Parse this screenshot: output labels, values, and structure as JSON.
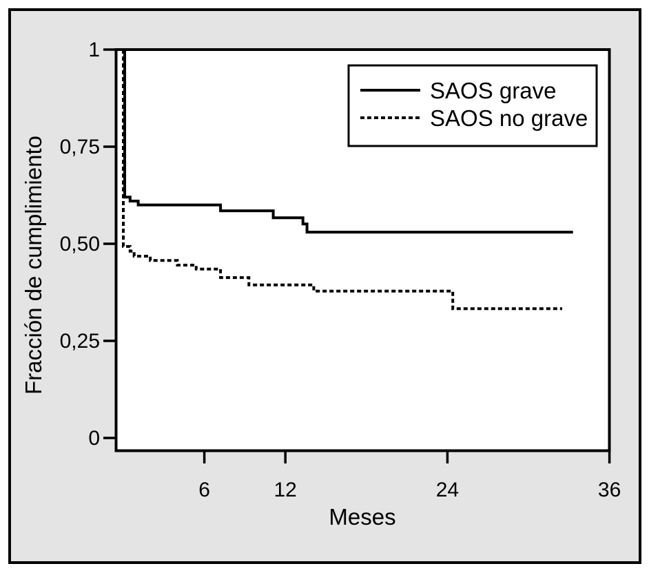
{
  "figure": {
    "outer_background": "#ffffff",
    "panel_background": "#e4e4e4",
    "plot_background": "#ffffff",
    "stroke_color": "#000000"
  },
  "chart_data": {
    "type": "line",
    "subtype": "step-after-survival-curve",
    "xlabel": "Meses",
    "ylabel": "Fracción de cumplimiento",
    "xlim": [
      -0.6,
      36
    ],
    "ylim": [
      -0.033,
      1
    ],
    "grid": false,
    "legend_position": "top-right",
    "x_ticks": [
      {
        "value": 6,
        "label": "6"
      },
      {
        "value": 12,
        "label": "12"
      },
      {
        "value": 24,
        "label": "24"
      },
      {
        "value": 36,
        "label": "36"
      }
    ],
    "y_ticks": [
      {
        "value": 1,
        "label": "1"
      },
      {
        "value": 0.75,
        "label": "0,75"
      },
      {
        "value": 0.5,
        "label": "0,50"
      },
      {
        "value": 0.25,
        "label": "0,25"
      },
      {
        "value": 0,
        "label": "0"
      }
    ],
    "series": [
      {
        "name": "SAOS grave",
        "line_style": "solid",
        "points_note": "step function [month, fraction]",
        "points": [
          [
            0.1,
            1
          ],
          [
            0.1,
            0.62
          ],
          [
            0.5,
            0.61
          ],
          [
            1.1,
            0.6
          ],
          [
            7.2,
            0.585
          ],
          [
            11.1,
            0.567
          ],
          [
            13.3,
            0.551
          ],
          [
            13.6,
            0.53
          ],
          [
            33.3,
            0.53
          ]
        ]
      },
      {
        "name": "SAOS no grave",
        "line_style": "dashed",
        "points_note": "step function [month, fraction]",
        "points": [
          [
            0,
            1
          ],
          [
            0,
            0.493
          ],
          [
            0.5,
            0.481
          ],
          [
            0.8,
            0.468
          ],
          [
            2,
            0.457
          ],
          [
            4,
            0.445
          ],
          [
            5.4,
            0.435
          ],
          [
            7.2,
            0.413
          ],
          [
            9.3,
            0.394
          ],
          [
            14.1,
            0.378
          ],
          [
            24.4,
            0.333
          ],
          [
            32.5,
            0.333
          ]
        ]
      }
    ]
  }
}
